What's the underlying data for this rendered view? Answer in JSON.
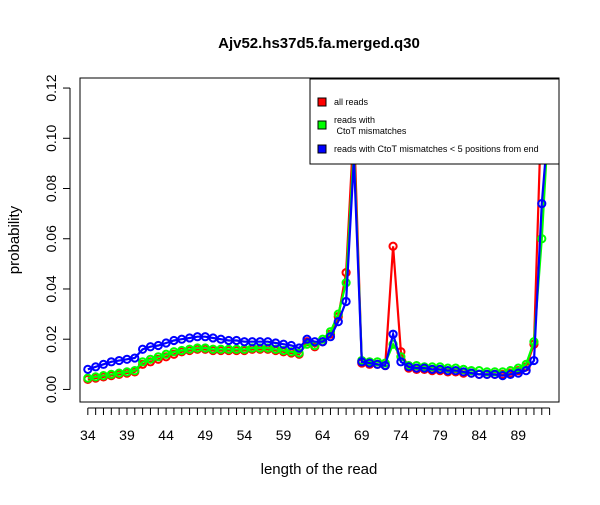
{
  "chart_data": {
    "type": "line",
    "title": "Ajv52.hs37d5.fa.merged.q30",
    "xlabel": "length of the read",
    "ylabel": "probability",
    "xlim": [
      33,
      94.2
    ],
    "ylim": [
      -0.005,
      0.124
    ],
    "x_ticks": [
      34,
      39,
      44,
      49,
      54,
      59,
      64,
      69,
      74,
      79,
      84,
      89
    ],
    "x_tick_labels": [
      "34",
      "39",
      "44",
      "49",
      "54",
      "59",
      "64",
      "69",
      "74",
      "79",
      "84",
      "89"
    ],
    "y_ticks": [
      0.0,
      0.02,
      0.04,
      0.06,
      0.08,
      0.1,
      0.12
    ],
    "y_tick_labels": [
      "0.00",
      "0.02",
      "0.04",
      "0.06",
      "0.08",
      "0.10",
      "0.12"
    ],
    "grid": false,
    "legend_position": "top-right",
    "x": [
      34,
      35,
      36,
      37,
      38,
      39,
      40,
      41,
      42,
      43,
      44,
      45,
      46,
      47,
      48,
      49,
      50,
      51,
      52,
      53,
      54,
      55,
      56,
      57,
      58,
      59,
      60,
      61,
      62,
      63,
      64,
      65,
      66,
      67,
      68,
      69,
      70,
      71,
      72,
      73,
      74,
      75,
      76,
      77,
      78,
      79,
      80,
      81,
      82,
      83,
      84,
      85,
      86,
      87,
      88,
      89,
      90,
      91,
      92,
      93
    ],
    "series": [
      {
        "name": "all reads",
        "color": "#ff0000",
        "values": [
          0.004,
          0.0045,
          0.005,
          0.0055,
          0.006,
          0.0065,
          0.007,
          0.01,
          0.011,
          0.012,
          0.013,
          0.014,
          0.015,
          0.0155,
          0.016,
          0.016,
          0.0155,
          0.0155,
          0.0155,
          0.0155,
          0.0155,
          0.016,
          0.016,
          0.016,
          0.0155,
          0.015,
          0.0145,
          0.014,
          0.019,
          0.017,
          0.019,
          0.022,
          0.029,
          0.0465,
          0.106,
          0.0105,
          0.01,
          0.01,
          0.0095,
          0.057,
          0.015,
          0.0085,
          0.008,
          0.008,
          0.0075,
          0.0075,
          0.007,
          0.007,
          0.0065,
          0.0065,
          0.006,
          0.006,
          0.006,
          0.006,
          0.0065,
          0.0075,
          0.009,
          0.018,
          0.117,
          0.12
        ]
      },
      {
        "name": "reads with\n CtoT mismatches",
        "color": "#00ff00",
        "values": [
          0.0045,
          0.005,
          0.0055,
          0.006,
          0.0065,
          0.007,
          0.0075,
          0.011,
          0.012,
          0.013,
          0.014,
          0.015,
          0.0155,
          0.016,
          0.0165,
          0.0165,
          0.016,
          0.016,
          0.016,
          0.016,
          0.016,
          0.0165,
          0.0165,
          0.0165,
          0.016,
          0.0155,
          0.015,
          0.0145,
          0.018,
          0.0175,
          0.02,
          0.023,
          0.03,
          0.0425,
          0.096,
          0.0115,
          0.011,
          0.011,
          0.0105,
          0.018,
          0.013,
          0.0095,
          0.0095,
          0.009,
          0.009,
          0.009,
          0.0085,
          0.0085,
          0.008,
          0.0075,
          0.0075,
          0.007,
          0.007,
          0.007,
          0.0075,
          0.0085,
          0.01,
          0.019,
          0.06,
          0.115
        ]
      },
      {
        "name": "reads with CtoT mismatches < 5 positions from end",
        "color": "#0000ff",
        "values": [
          0.008,
          0.009,
          0.01,
          0.011,
          0.0115,
          0.012,
          0.0125,
          0.016,
          0.017,
          0.0175,
          0.0185,
          0.0195,
          0.02,
          0.0205,
          0.021,
          0.021,
          0.0205,
          0.02,
          0.0195,
          0.0195,
          0.019,
          0.019,
          0.019,
          0.019,
          0.0185,
          0.018,
          0.0175,
          0.0165,
          0.02,
          0.019,
          0.019,
          0.021,
          0.027,
          0.035,
          0.092,
          0.011,
          0.0105,
          0.01,
          0.0095,
          0.022,
          0.011,
          0.009,
          0.0085,
          0.0085,
          0.008,
          0.008,
          0.0075,
          0.0075,
          0.007,
          0.0065,
          0.006,
          0.006,
          0.006,
          0.0055,
          0.006,
          0.0065,
          0.0075,
          0.0115,
          0.074,
          0.112
        ]
      }
    ]
  }
}
